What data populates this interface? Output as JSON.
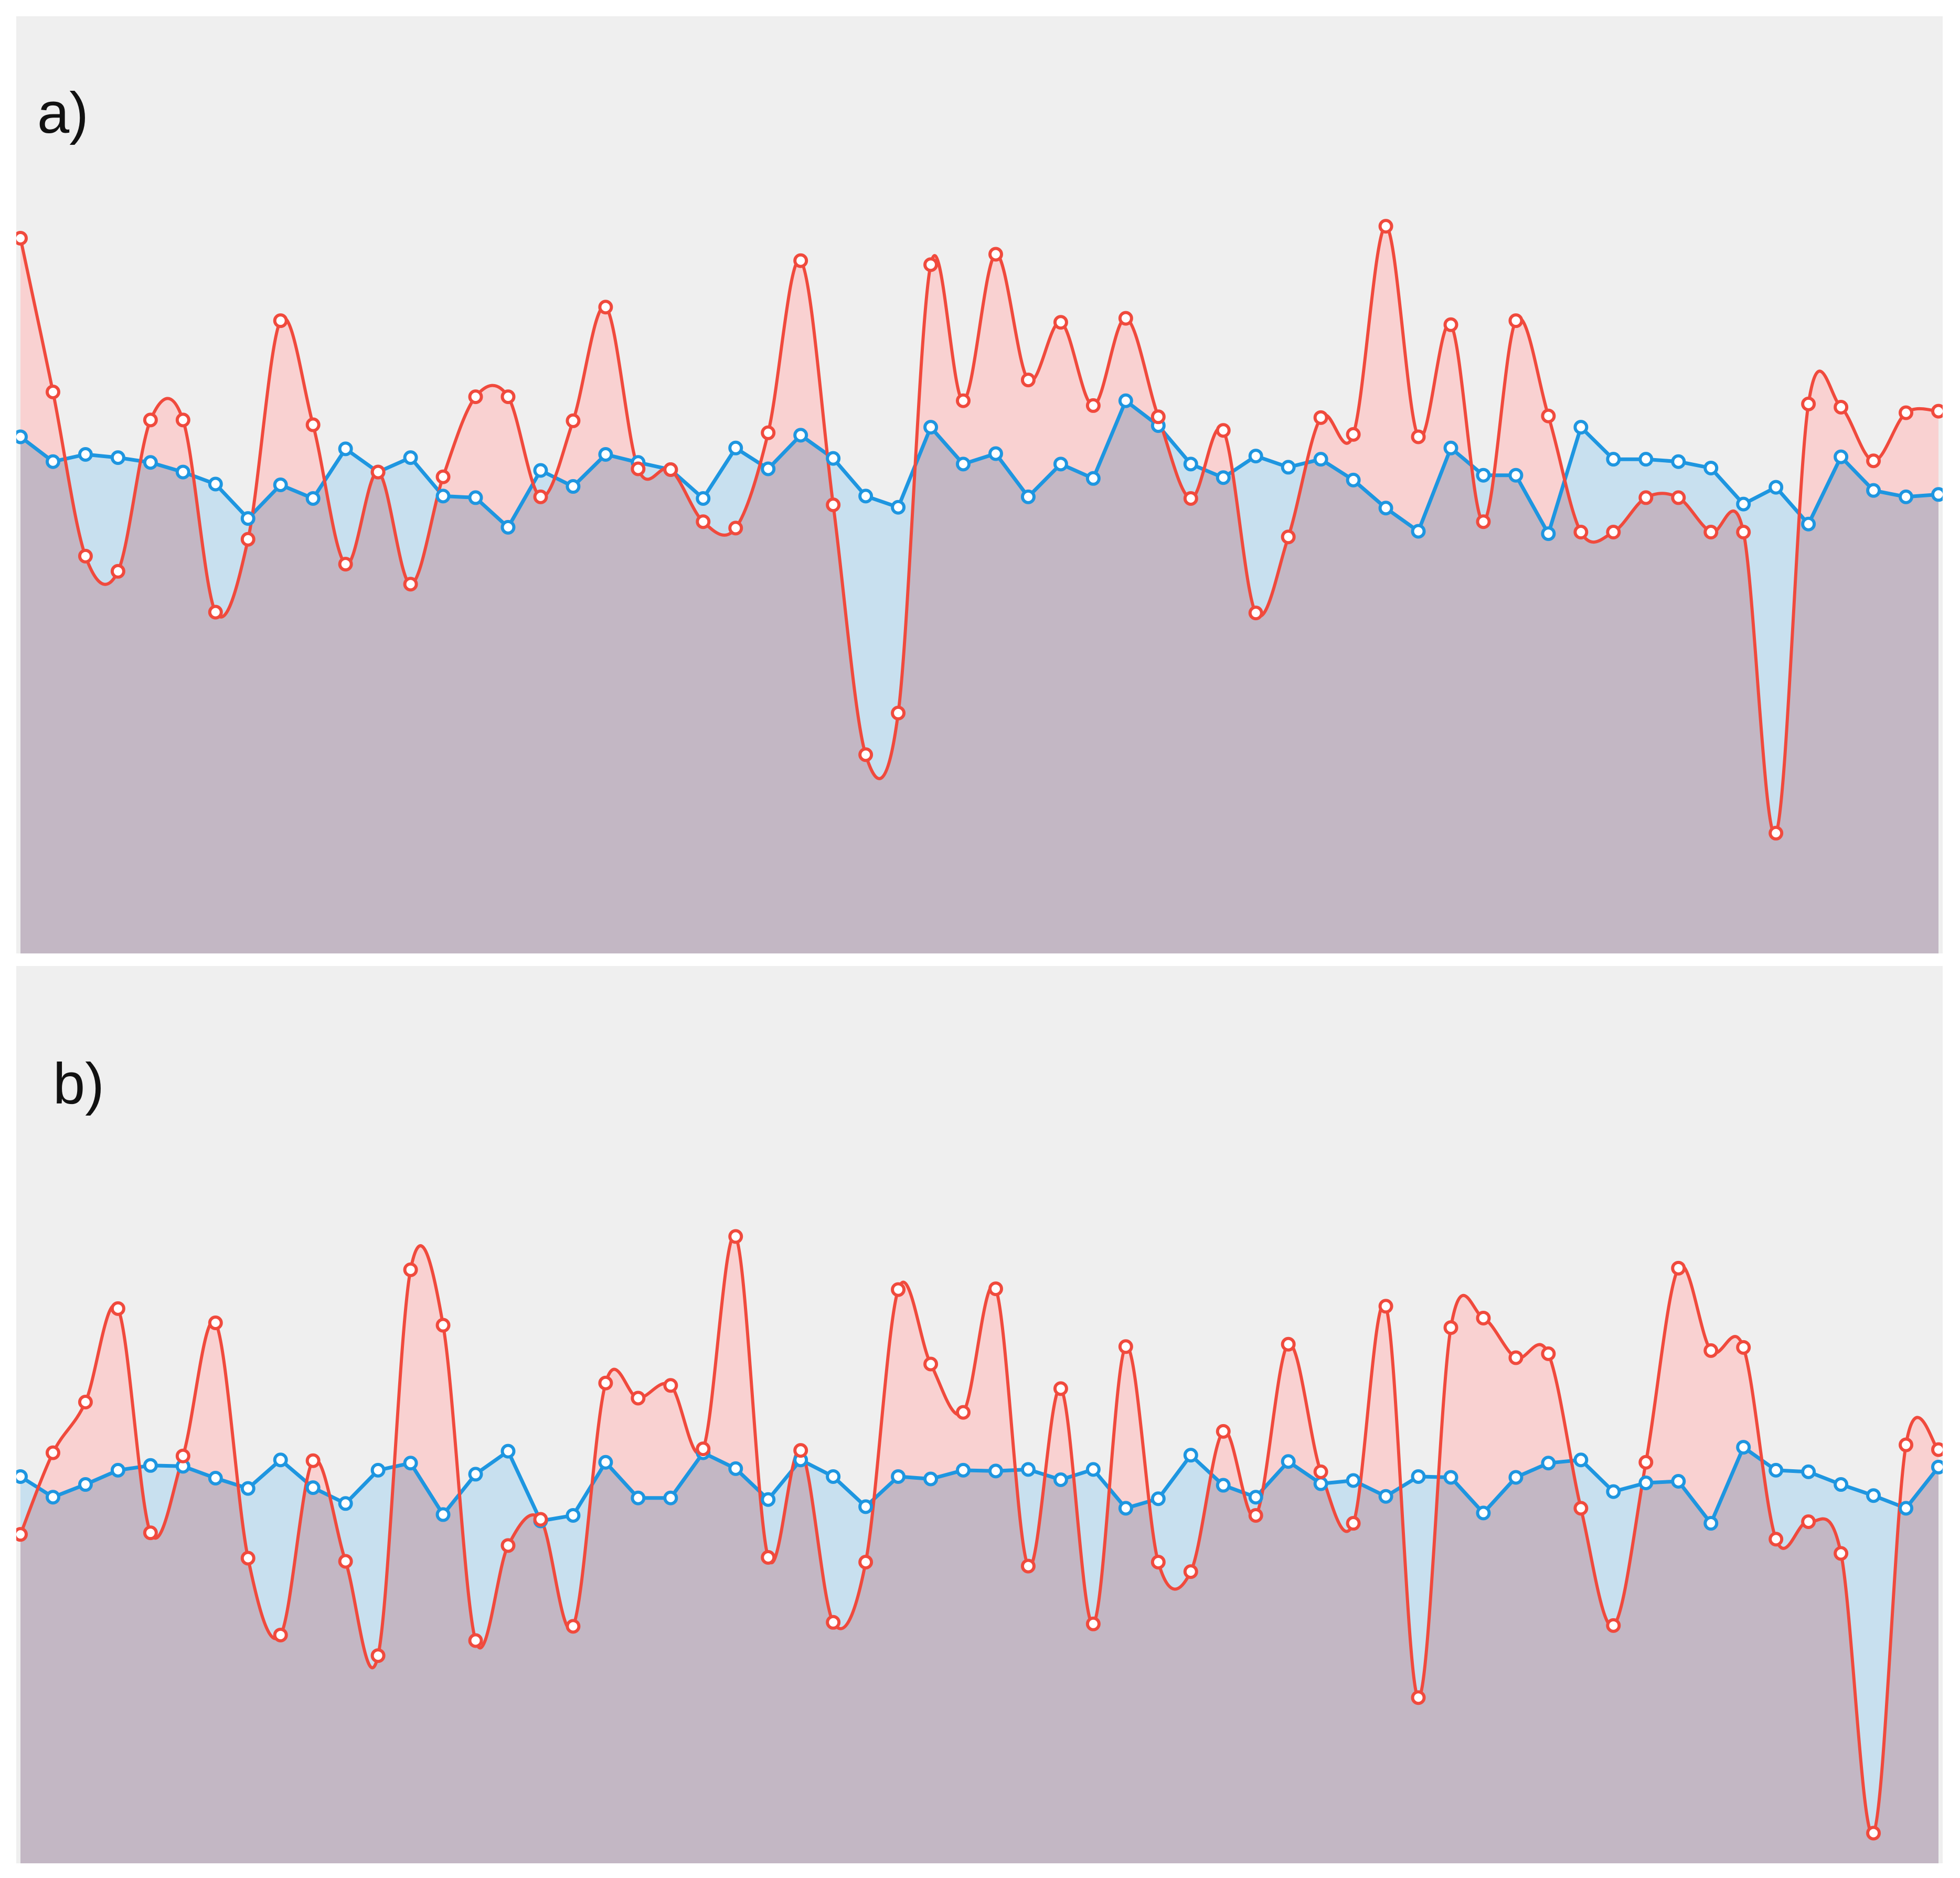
{
  "colors": {
    "background": "#efefef",
    "red_line": "#f04a3d",
    "blue_line": "#1e96e0",
    "red_fill": "#f9d1d1",
    "blue_fill": "#c8e0ef",
    "overlap_fill": "#dac9d4",
    "marker_fill": "#ffffff"
  },
  "chart_data": [
    {
      "type": "area",
      "label": "a)",
      "ylim": [
        0,
        100
      ],
      "grid": false,
      "legend": "none",
      "series": [
        {
          "color": "#f04a3d",
          "values": [
            80.8,
            61.6,
            41.1,
            39.2,
            58.1,
            58.1,
            34.1,
            43.2,
            70.5,
            57.5,
            40.1,
            51.6,
            37.6,
            51,
            61,
            61,
            48.5,
            58,
            72.2,
            52,
            51.9,
            45.4,
            44.6,
            56.5,
            78,
            47.5,
            16.3,
            21.5,
            77.5,
            60.5,
            78.8,
            63.1,
            70.3,
            59.9,
            70.8,
            58.5,
            48.3,
            56.8,
            34,
            43.5,
            58.4,
            56.3,
            82.3,
            56,
            70,
            45.4,
            70.5,
            58.6,
            44.1,
            44.1,
            48.4,
            48.4,
            44.1,
            44.1,
            6.5,
            60.1,
            59.7,
            53,
            59,
            59.2
          ]
        },
        {
          "color": "#1e96e0",
          "values": [
            56,
            52.9,
            53.8,
            53.4,
            52.8,
            51.6,
            50.1,
            45.8,
            50,
            48.3,
            54.5,
            51.6,
            53.4,
            48.6,
            48.4,
            44.7,
            51.8,
            49.8,
            53.8,
            52.8,
            51.9,
            48.3,
            54.6,
            52,
            56.2,
            53.3,
            48.6,
            47.2,
            57.2,
            52.6,
            53.9,
            48.5,
            52.6,
            50.8,
            60.5,
            57.4,
            52.6,
            50.9,
            53.6,
            52.2,
            53.2,
            50.6,
            47.1,
            44.2,
            54.6,
            51.2,
            51.2,
            43.9,
            57.2,
            53.2,
            53.2,
            52.9,
            52.1,
            47.6,
            49.7,
            45.1,
            53.5,
            49.3,
            48.5,
            48.8
          ]
        }
      ]
    },
    {
      "type": "area",
      "label": "b)",
      "ylim": [
        0,
        100
      ],
      "grid": false,
      "legend": "none",
      "series": [
        {
          "color": "#f04a3d",
          "values": [
            38.2,
            48.5,
            54.9,
            66.7,
            38.4,
            48.1,
            64.9,
            35.2,
            25.5,
            47.5,
            34.8,
            22.9,
            71.6,
            64.6,
            24.8,
            36.8,
            40.1,
            26.6,
            57.3,
            55.4,
            57,
            49,
            75.8,
            35.3,
            48.8,
            27.1,
            34.7,
            69.1,
            59.7,
            53.6,
            69.2,
            34.2,
            56.6,
            26.9,
            61.9,
            34.7,
            33.5,
            51.2,
            40.6,
            62.2,
            46.1,
            39.6,
            67,
            17.6,
            64.3,
            65.5,
            60.5,
            61,
            41.5,
            26.7,
            47.3,
            71.8,
            61.4,
            61.8,
            37.6,
            39.8,
            35.8,
            0.5,
            49.5,
            48.9
          ]
        },
        {
          "color": "#1e96e0",
          "values": [
            45.5,
            42.9,
            44.5,
            46.3,
            46.9,
            46.8,
            45.3,
            44,
            47.6,
            44.1,
            42.1,
            46.3,
            47.2,
            40.7,
            45.8,
            48.7,
            39.9,
            40.6,
            47.3,
            42.8,
            42.8,
            48.5,
            46.5,
            42.6,
            47.6,
            45.5,
            41.7,
            45.5,
            45.2,
            46.3,
            46.2,
            46.4,
            45.1,
            46.4,
            41.5,
            42.7,
            48.2,
            44.4,
            42.9,
            47.4,
            44.6,
            45,
            43,
            45.5,
            45.4,
            40.9,
            45.4,
            47.2,
            47.6,
            43.6,
            44.7,
            44.9,
            39.6,
            49.2,
            46.3,
            46.1,
            44.5,
            43.1,
            41.5,
            46.7
          ]
        }
      ]
    }
  ]
}
